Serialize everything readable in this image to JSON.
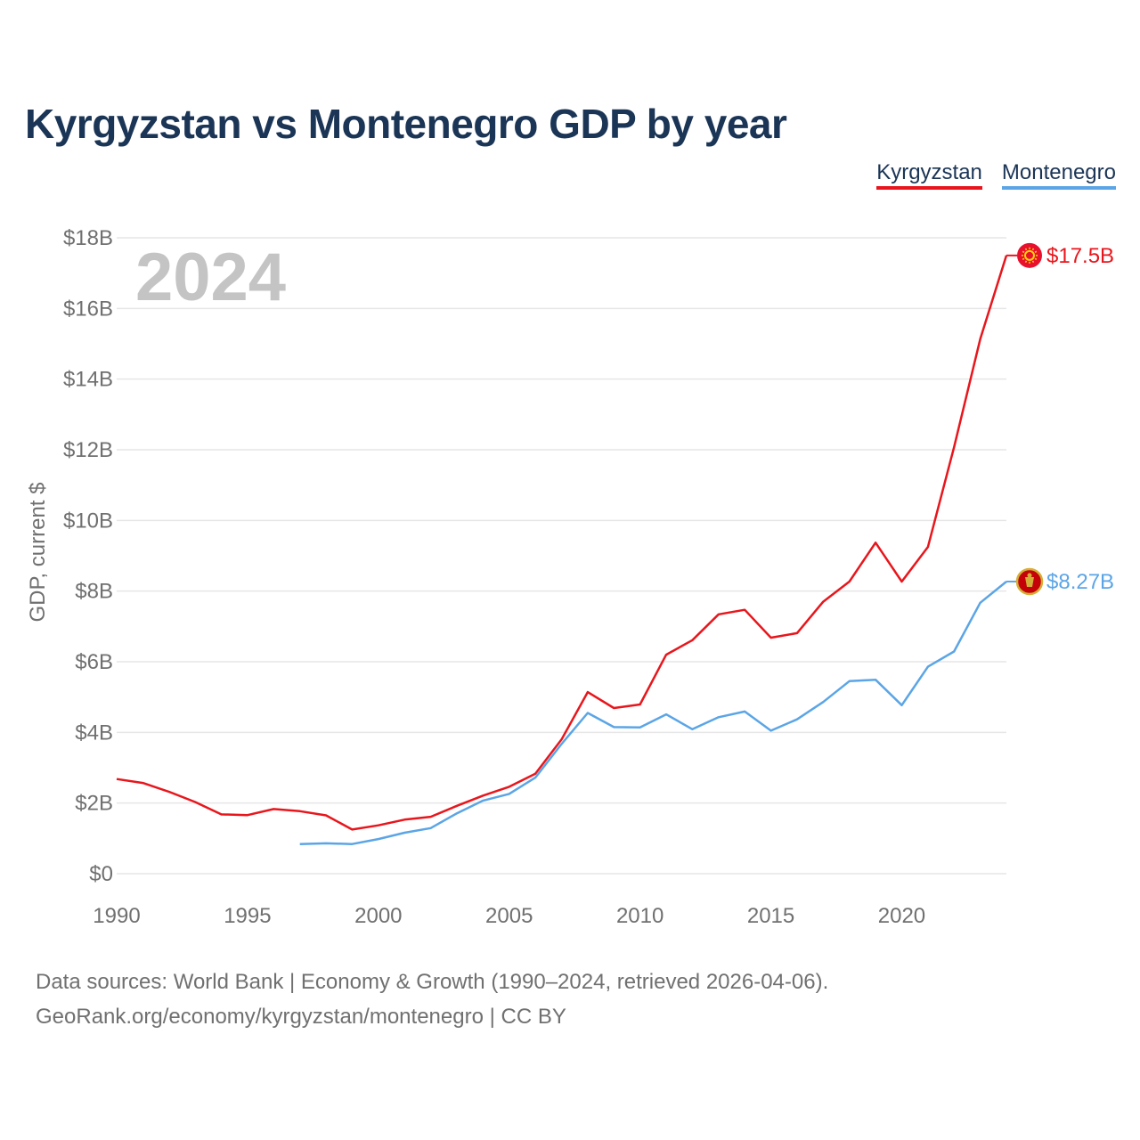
{
  "title": "Kyrgyzstan vs Montenegro GDP by year",
  "legend": {
    "kyrgyzstan": "Kyrgyzstan",
    "montenegro": "Montenegro"
  },
  "year_label": "2024",
  "footer": {
    "line1": "Data sources: World Bank | Economy & Growth (1990–2024, retrieved 2026-04-06).",
    "line2": "GeoRank.org/economy/kyrgyzstan/montenegro | CC BY"
  },
  "end_labels": {
    "kyrgyzstan": "$17.5B",
    "montenegro": "$8.27B"
  },
  "colors": {
    "kyrgyzstan": "#e8161c",
    "montenegro": "#5ba5e6",
    "grid": "#e6e6e6",
    "axis_text": "#707070",
    "year": "#c4c4c4",
    "title": "#1b3556"
  },
  "chart_data": {
    "type": "line",
    "title": "Kyrgyzstan vs Montenegro GDP by year",
    "xlabel": "",
    "ylabel": "GDP, current $",
    "ylim": [
      0,
      18
    ],
    "xlim": [
      1990,
      2024
    ],
    "y_ticks": [
      0,
      2,
      4,
      6,
      8,
      10,
      12,
      14,
      16,
      18
    ],
    "y_tick_labels": [
      "$0",
      "$2B",
      "$4B",
      "$6B",
      "$8B",
      "$10B",
      "$12B",
      "$14B",
      "$16B",
      "$18B"
    ],
    "x_ticks": [
      1990,
      1995,
      2000,
      2005,
      2010,
      2015,
      2020
    ],
    "x_tick_labels": [
      "1990",
      "1995",
      "2000",
      "2005",
      "2010",
      "2015",
      "2020"
    ],
    "grid": true,
    "legend_position": "top-right",
    "series": [
      {
        "name": "Kyrgyzstan",
        "x": [
          1990,
          1991,
          1992,
          1993,
          1994,
          1995,
          1996,
          1997,
          1998,
          1999,
          2000,
          2001,
          2002,
          2003,
          2004,
          2005,
          2006,
          2007,
          2008,
          2009,
          2010,
          2011,
          2012,
          2013,
          2014,
          2015,
          2016,
          2017,
          2018,
          2019,
          2020,
          2021,
          2022,
          2023,
          2024
        ],
        "values": [
          2.68,
          2.57,
          2.32,
          2.03,
          1.68,
          1.66,
          1.83,
          1.77,
          1.65,
          1.25,
          1.37,
          1.53,
          1.61,
          1.92,
          2.21,
          2.46,
          2.83,
          3.8,
          5.14,
          4.69,
          4.79,
          6.2,
          6.61,
          7.34,
          7.47,
          6.68,
          6.81,
          7.7,
          8.27,
          9.37,
          8.27,
          9.25,
          12.07,
          15.13,
          17.5
        ]
      },
      {
        "name": "Montenegro",
        "x": [
          1997,
          1998,
          1999,
          2000,
          2001,
          2002,
          2003,
          2004,
          2005,
          2006,
          2007,
          2008,
          2009,
          2010,
          2011,
          2012,
          2013,
          2014,
          2015,
          2016,
          2017,
          2018,
          2019,
          2020,
          2021,
          2022,
          2023,
          2024
        ],
        "values": [
          0.84,
          0.86,
          0.84,
          0.98,
          1.16,
          1.29,
          1.71,
          2.07,
          2.26,
          2.72,
          3.67,
          4.55,
          4.15,
          4.14,
          4.51,
          4.09,
          4.43,
          4.59,
          4.05,
          4.37,
          4.86,
          5.45,
          5.49,
          4.77,
          5.86,
          6.29,
          7.67,
          8.27
        ]
      }
    ]
  }
}
